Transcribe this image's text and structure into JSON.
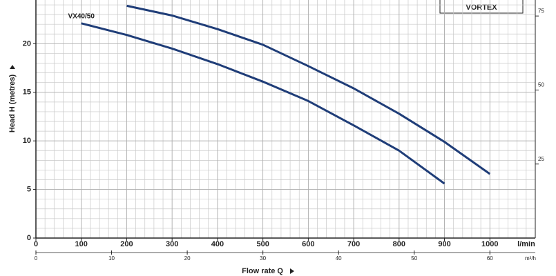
{
  "chart_data": {
    "type": "line",
    "y_label": "Head H (metres)",
    "x_label": "Flow rate Q",
    "x_unit": "l/min",
    "x2_unit": "m³/h",
    "legend_box": "VORTEX",
    "xlim": [
      0,
      1100
    ],
    "xticks": [
      0,
      100,
      200,
      300,
      400,
      500,
      600,
      700,
      800,
      900,
      1000
    ],
    "ylim": [
      0,
      24.5
    ],
    "yticks": [
      0,
      5,
      10,
      15,
      20
    ],
    "y2lim": [
      0,
      80.4
    ],
    "y2ticks": [
      25,
      50,
      75
    ],
    "x2lim": [
      0,
      66
    ],
    "x2ticks": [
      0,
      10,
      20,
      30,
      40,
      50,
      60
    ],
    "grid": true,
    "series": [
      {
        "color": "#1f3d78",
        "x": [
          200,
          300,
          400,
          500,
          600,
          700,
          800,
          900,
          1000
        ],
        "values": [
          23.9,
          22.9,
          21.5,
          19.9,
          17.7,
          15.4,
          12.8,
          9.9,
          6.6
        ]
      },
      {
        "name": "VX40/50",
        "color": "#1f3d78",
        "x": [
          100,
          200,
          300,
          400,
          500,
          600,
          700,
          800,
          900
        ],
        "values": [
          22.1,
          20.9,
          19.5,
          17.9,
          16.1,
          14.1,
          11.6,
          9.0,
          5.6
        ]
      }
    ]
  }
}
